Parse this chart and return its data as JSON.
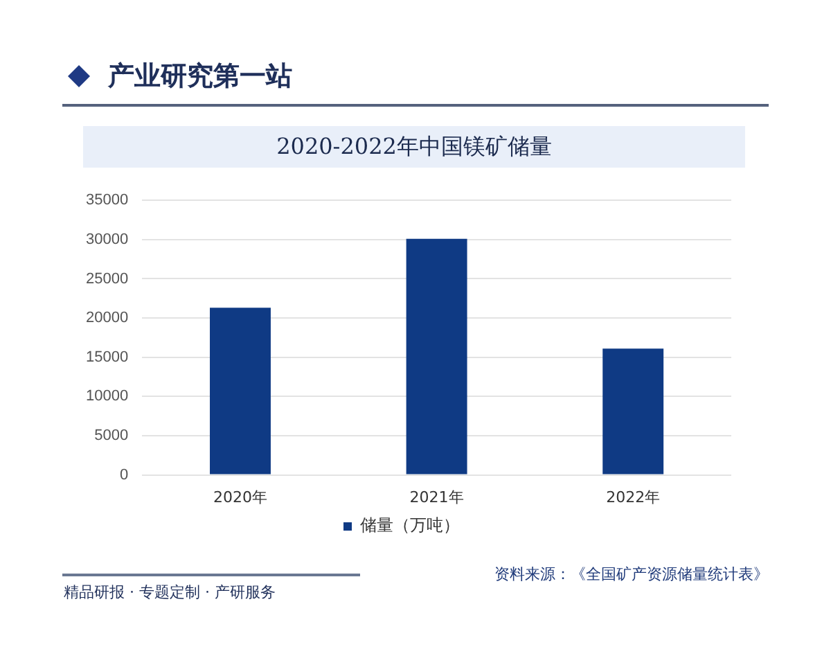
{
  "chart_data": {
    "type": "bar",
    "subtitle": "产业研究第一站",
    "title": "2020-2022年中国镁矿储量",
    "categories": [
      "2020年",
      "2021年",
      "2022年"
    ],
    "series": [
      {
        "name": "储量（万吨）",
        "color": "#0f3a84",
        "values": [
          21300,
          30100,
          16100
        ]
      }
    ],
    "ylim": [
      0,
      35000
    ],
    "yticks": [
      0,
      5000,
      10000,
      15000,
      20000,
      25000,
      30000,
      35000
    ],
    "grid": "y",
    "legend": "bottom",
    "annotations": [
      "精品研报 · 专题定制 · 产研服务",
      "资料来源：《全国矿产资源储量统计表》"
    ]
  }
}
